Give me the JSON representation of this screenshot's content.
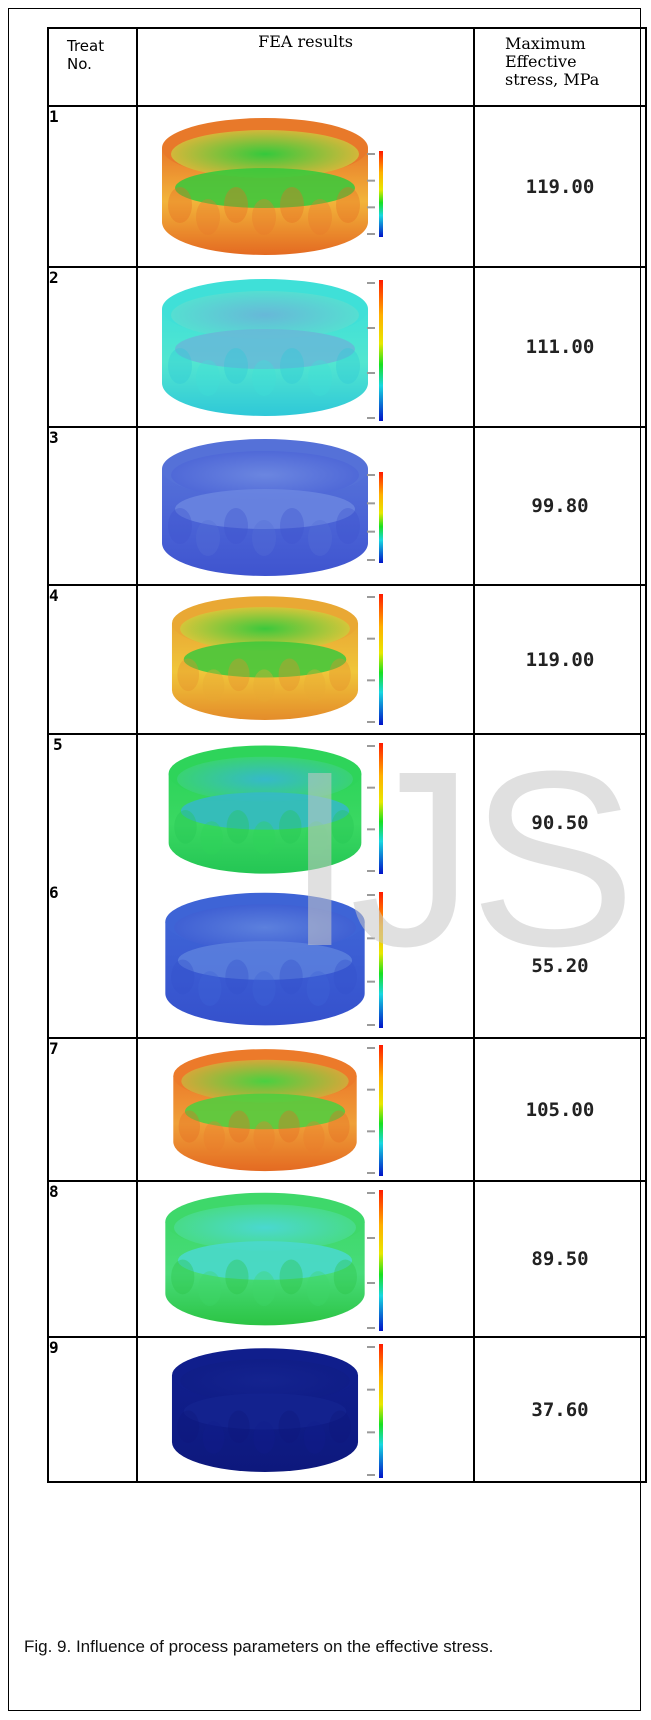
{
  "table": {
    "header": {
      "treat_line1": "Treat",
      "treat_line2": "No.",
      "fea": "FEA results",
      "max_line1": "Maximum",
      "max_line2": "Effective",
      "max_line3": "stress, MPa"
    },
    "rows": [
      {
        "no": "1",
        "value": "119.00",
        "colors": {
          "top": "#e8792a",
          "mid": "#f2b43a",
          "bottom": "#e46a22",
          "inner": "#34c93c"
        }
      },
      {
        "no": "2",
        "value": "111.00",
        "colors": {
          "top": "#3fe0d8",
          "mid": "#52e6d0",
          "bottom": "#2fc8d8",
          "inner": "#67b8d8"
        }
      },
      {
        "no": "3",
        "value": "99.80",
        "colors": {
          "top": "#5571d8",
          "mid": "#4a63d6",
          "bottom": "#3f54cf",
          "inner": "#6b86e0"
        }
      },
      {
        "no": "4",
        "value": "119.00",
        "colors": {
          "top": "#e9a834",
          "mid": "#f0c63a",
          "bottom": "#e48c2a",
          "inner": "#3cc83c"
        }
      },
      {
        "no": "5",
        "value": "90.50",
        "colors": {
          "top": "#2ed45a",
          "mid": "#3ad862",
          "bottom": "#24c654",
          "inner": "#35b9c9"
        }
      },
      {
        "no": "6",
        "value": "55.20",
        "colors": {
          "top": "#3e64d6",
          "mid": "#3a5ad2",
          "bottom": "#3551cc",
          "inner": "#5c80dd"
        }
      },
      {
        "no": "7",
        "value": "105.00",
        "colors": {
          "top": "#ec7a2a",
          "mid": "#efa038",
          "bottom": "#e46a22",
          "inner": "#4ad040"
        }
      },
      {
        "no": "8",
        "value": "89.50",
        "colors": {
          "top": "#3ed86a",
          "mid": "#48dc7a",
          "bottom": "#2cc444",
          "inner": "#4ad8d0"
        }
      },
      {
        "no": "9",
        "value": "37.60",
        "colors": {
          "top": "#101e8c",
          "mid": "#0f1c86",
          "bottom": "#0d187c",
          "inner": "#14238f"
        }
      }
    ]
  },
  "caption": "Fig. 9. Influence of process parameters on the effective stress.",
  "watermark": "IJS",
  "colors": {
    "scale_top": "#ff1a00",
    "scale_mid": "#18e020",
    "scale_bottom": "#0012c8"
  }
}
